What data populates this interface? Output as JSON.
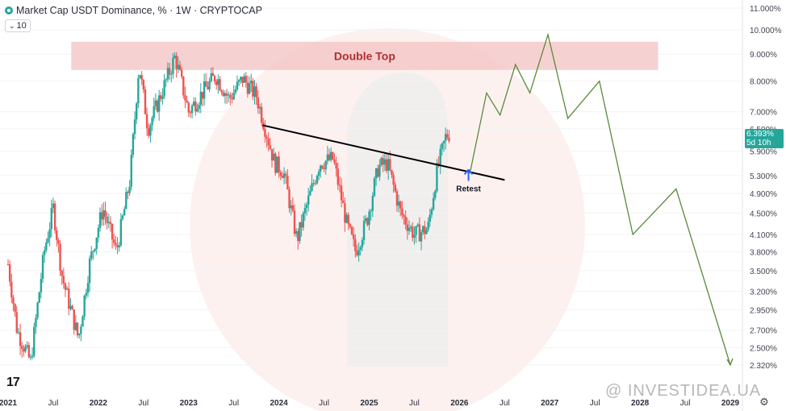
{
  "header": {
    "title": "Market Cap USDT Dominance, % · 1W · CRYPTOCAP",
    "interval_chip": "10"
  },
  "price_badge": {
    "value": "6.393%",
    "countdown": "5d 10h"
  },
  "watermark": "@ INVESTIDEA.UA",
  "logo": "17",
  "colors": {
    "up": "#26a69a",
    "down": "#ef5350",
    "projection": "#5a8a3a",
    "zone": "#f4c6c6",
    "trendline": "#000000",
    "retest_arrow": "#2962ff"
  },
  "chart_data": {
    "type": "candlestick",
    "title": "Market Cap USDT Dominance, %",
    "y_scale": "log",
    "ylim": [
      2.2,
      11.2
    ],
    "y_ticks": [
      "11.000%",
      "10.000%",
      "9.000%",
      "8.000%",
      "7.000%",
      "6.500%",
      "5.900%",
      "5.300%",
      "4.900%",
      "4.500%",
      "4.100%",
      "3.800%",
      "3.500%",
      "3.200%",
      "2.950%",
      "2.700%",
      "2.500%",
      "2.320%"
    ],
    "x_ticks": [
      "2021",
      "Jul",
      "2022",
      "Jul",
      "2023",
      "Jul",
      "2024",
      "Jul",
      "2025",
      "Jul",
      "2026",
      "Jul",
      "2027",
      "Jul",
      "2028",
      "Jul",
      "2029"
    ],
    "price_path": [
      [
        2021.0,
        3.6
      ],
      [
        2021.1,
        2.7
      ],
      [
        2021.25,
        2.35
      ],
      [
        2021.4,
        3.8
      ],
      [
        2021.5,
        4.6
      ],
      [
        2021.6,
        3.4
      ],
      [
        2021.78,
        2.6
      ],
      [
        2021.9,
        3.6
      ],
      [
        2022.05,
        4.6
      ],
      [
        2022.2,
        3.8
      ],
      [
        2022.35,
        5.2
      ],
      [
        2022.45,
        8.6
      ],
      [
        2022.55,
        6.5
      ],
      [
        2022.7,
        7.6
      ],
      [
        2022.85,
        8.9
      ],
      [
        2023.0,
        7.0
      ],
      [
        2023.15,
        7.6
      ],
      [
        2023.3,
        8.2
      ],
      [
        2023.45,
        7.4
      ],
      [
        2023.6,
        8.1
      ],
      [
        2023.75,
        7.5
      ],
      [
        2023.85,
        6.5
      ],
      [
        2023.95,
        5.6
      ],
      [
        2024.05,
        5.4
      ],
      [
        2024.2,
        4.0
      ],
      [
        2024.3,
        4.6
      ],
      [
        2024.45,
        5.6
      ],
      [
        2024.6,
        5.7
      ],
      [
        2024.75,
        4.3
      ],
      [
        2024.85,
        3.8
      ],
      [
        2024.98,
        4.4
      ],
      [
        2025.1,
        5.5
      ],
      [
        2025.2,
        5.6
      ],
      [
        2025.35,
        4.5
      ],
      [
        2025.5,
        4.1
      ],
      [
        2025.65,
        4.2
      ],
      [
        2025.75,
        5.4
      ],
      [
        2025.85,
        6.3
      ],
      [
        2025.9,
        6.39
      ]
    ],
    "annotations": {
      "zone_label": "Double Top",
      "retest_label": "Retest",
      "zone": {
        "x": [
          2021.7,
          2028.2
        ],
        "y": [
          8.4,
          9.5
        ]
      },
      "trendline": {
        "x": [
          2023.82,
          2026.5
        ],
        "y": [
          6.6,
          5.2
        ]
      },
      "retest_point": {
        "x": 2026.1,
        "y": 5.48
      }
    },
    "projection": {
      "x": [
        2026.12,
        2026.3,
        2026.45,
        2026.62,
        2026.78,
        2026.98,
        2027.2,
        2027.55,
        2027.92,
        2028.4,
        2029.0
      ],
      "y": [
        5.4,
        7.6,
        6.9,
        8.6,
        7.6,
        9.8,
        6.8,
        8.0,
        4.1,
        5.0,
        2.32
      ]
    }
  }
}
